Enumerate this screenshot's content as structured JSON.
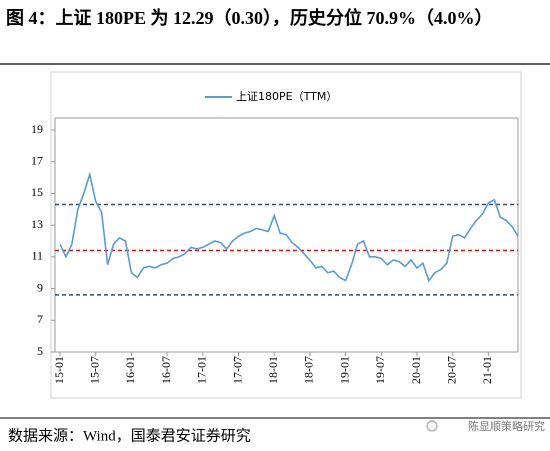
{
  "chart_data": {
    "type": "line",
    "title": "图 4：上证 180PE 为 12.29（0.30），历史分位 70.9%（4.0%）",
    "source": "数据来源：Wind，国泰君安证券研究",
    "watermark": "陈显顺策略研究",
    "categories": [
      "15-01",
      null,
      null,
      null,
      null,
      null,
      "15-07",
      null,
      null,
      null,
      null,
      null,
      "16-01",
      null,
      null,
      null,
      null,
      null,
      "16-07",
      null,
      null,
      null,
      null,
      null,
      "17-01",
      null,
      null,
      null,
      null,
      null,
      "17-07",
      null,
      null,
      null,
      null,
      null,
      "18-01",
      null,
      null,
      null,
      null,
      null,
      "18-07",
      null,
      null,
      null,
      null,
      null,
      "19-01",
      null,
      null,
      null,
      null,
      null,
      "19-07",
      null,
      null,
      null,
      null,
      null,
      "20-01",
      null,
      null,
      null,
      null,
      null,
      "20-07",
      null,
      null,
      null,
      null,
      null,
      "21-01",
      null,
      null,
      null,
      null,
      null
    ],
    "series": [
      {
        "name": "上证180PE（TTM）",
        "color": "#5b9bd5",
        "values": [
          11.8,
          11.0,
          11.8,
          14.0,
          15.0,
          16.2,
          14.5,
          13.8,
          10.5,
          11.8,
          12.2,
          12.0,
          10.0,
          9.7,
          10.3,
          10.4,
          10.3,
          10.5,
          10.6,
          10.9,
          11.0,
          11.2,
          11.6,
          11.5,
          11.6,
          11.8,
          12.0,
          11.9,
          11.5,
          12.0,
          12.3,
          12.5,
          12.6,
          12.8,
          12.7,
          12.6,
          13.6,
          12.5,
          12.4,
          11.9,
          11.6,
          11.2,
          10.8,
          10.3,
          10.4,
          10.0,
          10.1,
          9.7,
          9.5,
          10.5,
          11.8,
          12.0,
          11.0,
          11.0,
          10.9,
          10.5,
          10.8,
          10.7,
          10.4,
          10.8,
          10.3,
          10.6,
          9.5,
          10.0,
          10.2,
          10.6,
          12.3,
          12.4,
          12.2,
          12.8,
          13.3,
          13.7,
          14.4,
          14.6,
          13.5,
          13.3,
          12.9,
          12.3
        ]
      }
    ],
    "hlines": [
      {
        "value": 14.3,
        "color": "#2f4b7c"
      },
      {
        "value": 11.4,
        "color": "#ff0000"
      },
      {
        "value": 8.6,
        "color": "#2f4b7c"
      }
    ],
    "ylim": [
      5,
      19
    ],
    "yticks": [
      5,
      7,
      9,
      11,
      13,
      15,
      17,
      19
    ]
  }
}
